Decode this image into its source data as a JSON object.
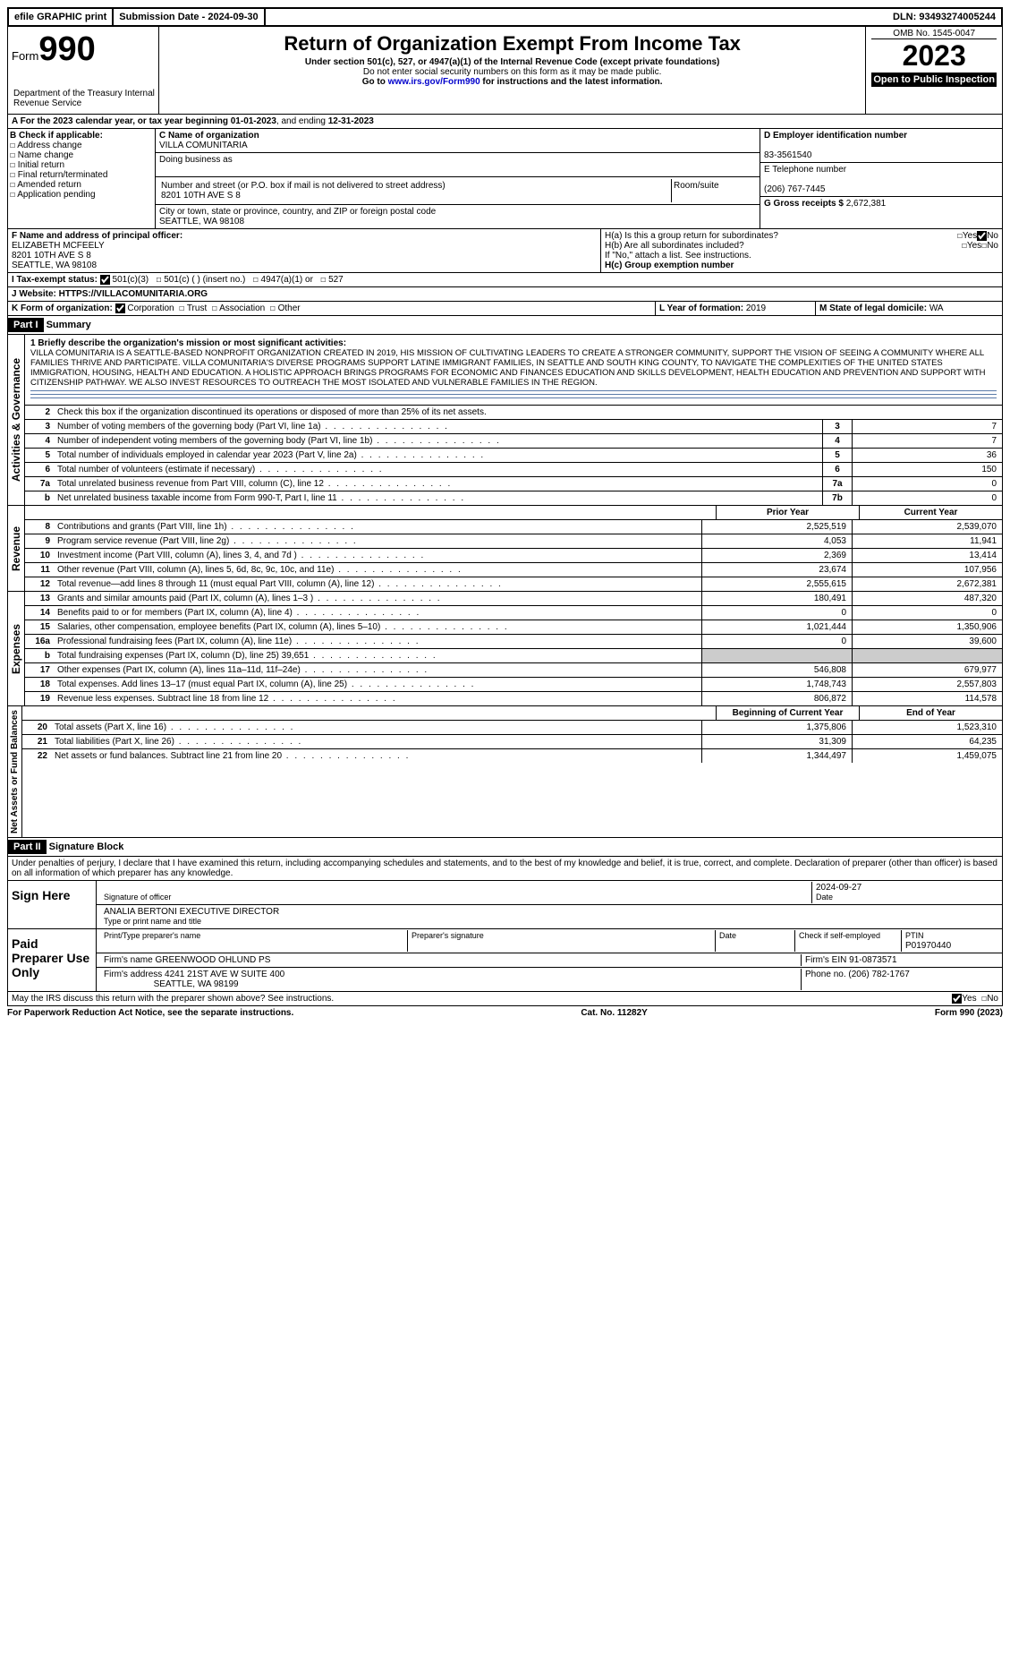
{
  "topbar": {
    "efile": "efile GRAPHIC print",
    "submission_label": "Submission Date - ",
    "submission_date": "2024-09-30",
    "dln_label": "DLN: ",
    "dln": "93493274005244"
  },
  "header": {
    "form_word": "Form",
    "form_num": "990",
    "title": "Return of Organization Exempt From Income Tax",
    "sub1": "Under section 501(c), 527, or 4947(a)(1) of the Internal Revenue Code (except private foundations)",
    "sub2": "Do not enter social security numbers on this form as it may be made public.",
    "sub3_pre": "Go to ",
    "sub3_link": "www.irs.gov/Form990",
    "sub3_post": " for instructions and the latest information.",
    "dept": "Department of the Treasury\nInternal Revenue Service",
    "omb": "OMB No. 1545-0047",
    "year": "2023",
    "otp": "Open to Public Inspection"
  },
  "row_a": {
    "text_pre": "A For the 2023 calendar year, or tax year beginning ",
    "begin": "01-01-2023",
    "text_mid": ", and ending ",
    "end": "12-31-2023"
  },
  "col_b": {
    "label": "B Check if applicable:",
    "items": [
      "Address change",
      "Name change",
      "Initial return",
      "Final return/terminated",
      "Amended return",
      "Application pending"
    ]
  },
  "col_c": {
    "name_label": "C Name of organization",
    "name": "VILLA COMUNITARIA",
    "dba_label": "Doing business as",
    "dba": "",
    "street_label": "Number and street (or P.O. box if mail is not delivered to street address)",
    "street": "8201 10TH AVE S 8",
    "room_label": "Room/suite",
    "room": "",
    "city_label": "City or town, state or province, country, and ZIP or foreign postal code",
    "city": "SEATTLE, WA  98108"
  },
  "col_d": {
    "ein_label": "D Employer identification number",
    "ein": "83-3561540",
    "tel_label": "E Telephone number",
    "tel": "(206) 767-7445",
    "gross_label": "G Gross receipts $ ",
    "gross": "2,672,381"
  },
  "row_f": {
    "label": "F Name and address of principal officer:",
    "name": "ELIZABETH MCFEELY",
    "addr1": "8201 10TH AVE S 8",
    "addr2": "SEATTLE, WA  98108"
  },
  "row_h": {
    "a_label": "H(a)  Is this a group return for subordinates?",
    "b_label": "H(b)  Are all subordinates included?",
    "b_note": "If \"No,\" attach a list. See instructions.",
    "c_label": "H(c)  Group exemption number ",
    "yes": "Yes",
    "no": "No"
  },
  "row_i": {
    "label": "I  Tax-exempt status:",
    "opts": [
      "501(c)(3)",
      "501(c) (   ) (insert no.)",
      "4947(a)(1) or",
      "527"
    ]
  },
  "row_j": {
    "label": "J  Website: ",
    "val": "HTTPS://VILLACOMUNITARIA.ORG"
  },
  "row_k": {
    "label": "K Form of organization:",
    "opts": [
      "Corporation",
      "Trust",
      "Association",
      "Other"
    ]
  },
  "row_l": {
    "label": "L Year of formation: ",
    "val": "2019"
  },
  "row_m": {
    "label": "M State of legal domicile: ",
    "val": "WA"
  },
  "part1": {
    "header": "Part I",
    "title": "Summary",
    "mission_label": "1  Briefly describe the organization's mission or most significant activities:",
    "mission": "VILLA COMUNITARIA IS A SEATTLE-BASED NONPROFIT ORGANIZATION CREATED IN 2019, HIS MISSION OF CULTIVATING LEADERS TO CREATE A STRONGER COMMUNITY, SUPPORT THE VISION OF SEEING A COMMUNITY WHERE ALL FAMILIES THRIVE AND PARTICIPATE. VILLA COMUNITARIA'S DIVERSE PROGRAMS SUPPORT LATINE IMMIGRANT FAMILIES, IN SEATTLE AND SOUTH KING COUNTY, TO NAVIGATE THE COMPLEXITIES OF THE UNITED STATES IMMIGRATION, HOUSING, HEALTH AND EDUCATION. A HOLISTIC APPROACH BRINGS PROGRAMS FOR ECONOMIC AND FINANCES EDUCATION AND SKILLS DEVELOPMENT, HEALTH EDUCATION AND PREVENTION AND SUPPORT WITH CITIZENSHIP PATHWAY. WE ALSO INVEST RESOURCES TO OUTREACH THE MOST ISOLATED AND VULNERABLE FAMILIES IN THE REGION.",
    "line2": "Check this box      if the organization discontinued its operations or disposed of more than 25% of its net assets.",
    "tabs": {
      "gov": "Activities & Governance",
      "rev": "Revenue",
      "exp": "Expenses",
      "net": "Net Assets or Fund Balances"
    },
    "gov_lines": [
      {
        "n": "3",
        "d": "Number of voting members of the governing body (Part VI, line 1a)",
        "b": "3",
        "v": "7"
      },
      {
        "n": "4",
        "d": "Number of independent voting members of the governing body (Part VI, line 1b)",
        "b": "4",
        "v": "7"
      },
      {
        "n": "5",
        "d": "Total number of individuals employed in calendar year 2023 (Part V, line 2a)",
        "b": "5",
        "v": "36"
      },
      {
        "n": "6",
        "d": "Total number of volunteers (estimate if necessary)",
        "b": "6",
        "v": "150"
      },
      {
        "n": "7a",
        "d": "Total unrelated business revenue from Part VIII, column (C), line 12",
        "b": "7a",
        "v": "0"
      },
      {
        "n": "b",
        "d": "Net unrelated business taxable income from Form 990-T, Part I, line 11",
        "b": "7b",
        "v": "0"
      }
    ],
    "col_headers": {
      "prior": "Prior Year",
      "current": "Current Year",
      "boc": "Beginning of Current Year",
      "eoy": "End of Year"
    },
    "rev_lines": [
      {
        "n": "8",
        "d": "Contributions and grants (Part VIII, line 1h)",
        "p": "2,525,519",
        "c": "2,539,070"
      },
      {
        "n": "9",
        "d": "Program service revenue (Part VIII, line 2g)",
        "p": "4,053",
        "c": "11,941"
      },
      {
        "n": "10",
        "d": "Investment income (Part VIII, column (A), lines 3, 4, and 7d )",
        "p": "2,369",
        "c": "13,414"
      },
      {
        "n": "11",
        "d": "Other revenue (Part VIII, column (A), lines 5, 6d, 8c, 9c, 10c, and 11e)",
        "p": "23,674",
        "c": "107,956"
      },
      {
        "n": "12",
        "d": "Total revenue—add lines 8 through 11 (must equal Part VIII, column (A), line 12)",
        "p": "2,555,615",
        "c": "2,672,381"
      }
    ],
    "exp_lines": [
      {
        "n": "13",
        "d": "Grants and similar amounts paid (Part IX, column (A), lines 1–3 )",
        "p": "180,491",
        "c": "487,320"
      },
      {
        "n": "14",
        "d": "Benefits paid to or for members (Part IX, column (A), line 4)",
        "p": "0",
        "c": "0"
      },
      {
        "n": "15",
        "d": "Salaries, other compensation, employee benefits (Part IX, column (A), lines 5–10)",
        "p": "1,021,444",
        "c": "1,350,906"
      },
      {
        "n": "16a",
        "d": "Professional fundraising fees (Part IX, column (A), line 11e)",
        "p": "0",
        "c": "39,600"
      },
      {
        "n": "b",
        "d": "Total fundraising expenses (Part IX, column (D), line 25) 39,651",
        "p": "",
        "c": "",
        "shade": true
      },
      {
        "n": "17",
        "d": "Other expenses (Part IX, column (A), lines 11a–11d, 11f–24e)",
        "p": "546,808",
        "c": "679,977"
      },
      {
        "n": "18",
        "d": "Total expenses. Add lines 13–17 (must equal Part IX, column (A), line 25)",
        "p": "1,748,743",
        "c": "2,557,803"
      },
      {
        "n": "19",
        "d": "Revenue less expenses. Subtract line 18 from line 12",
        "p": "806,872",
        "c": "114,578"
      }
    ],
    "net_lines": [
      {
        "n": "20",
        "d": "Total assets (Part X, line 16)",
        "p": "1,375,806",
        "c": "1,523,310"
      },
      {
        "n": "21",
        "d": "Total liabilities (Part X, line 26)",
        "p": "31,309",
        "c": "64,235"
      },
      {
        "n": "22",
        "d": "Net assets or fund balances. Subtract line 21 from line 20",
        "p": "1,344,497",
        "c": "1,459,075"
      }
    ]
  },
  "part2": {
    "header": "Part II",
    "title": "Signature Block",
    "perjury": "Under penalties of perjury, I declare that I have examined this return, including accompanying schedules and statements, and to the best of my knowledge and belief, it is true, correct, and complete. Declaration of preparer (other than officer) is based on all information of which preparer has any knowledge.",
    "sign_here": "Sign Here",
    "sig_officer_label": "Signature of officer",
    "sig_date": "2024-09-27",
    "sig_date_label": "Date",
    "officer_name": "ANALIA BERTONI  EXECUTIVE DIRECTOR",
    "officer_name_label": "Type or print name and title",
    "paid": "Paid Preparer Use Only",
    "prep_name_label": "Print/Type preparer's name",
    "prep_sig_label": "Preparer's signature",
    "date_label": "Date",
    "self_emp": "Check       if self-employed",
    "ptin_label": "PTIN",
    "ptin": "P01970440",
    "firm_name_label": "Firm's name   ",
    "firm_name": "GREENWOOD OHLUND PS",
    "firm_ein_label": "Firm's EIN  ",
    "firm_ein": "91-0873571",
    "firm_addr_label": "Firm's address ",
    "firm_addr1": "4241 21ST AVE W SUITE 400",
    "firm_addr2": "SEATTLE, WA  98199",
    "phone_label": "Phone no. ",
    "phone": "(206) 782-1767",
    "discuss": "May the IRS discuss this return with the preparer shown above? See instructions.",
    "yes": "Yes",
    "no": "No"
  },
  "footer": {
    "pra": "For Paperwork Reduction Act Notice, see the separate instructions.",
    "cat": "Cat. No. 11282Y",
    "form": "Form 990 (2023)"
  }
}
